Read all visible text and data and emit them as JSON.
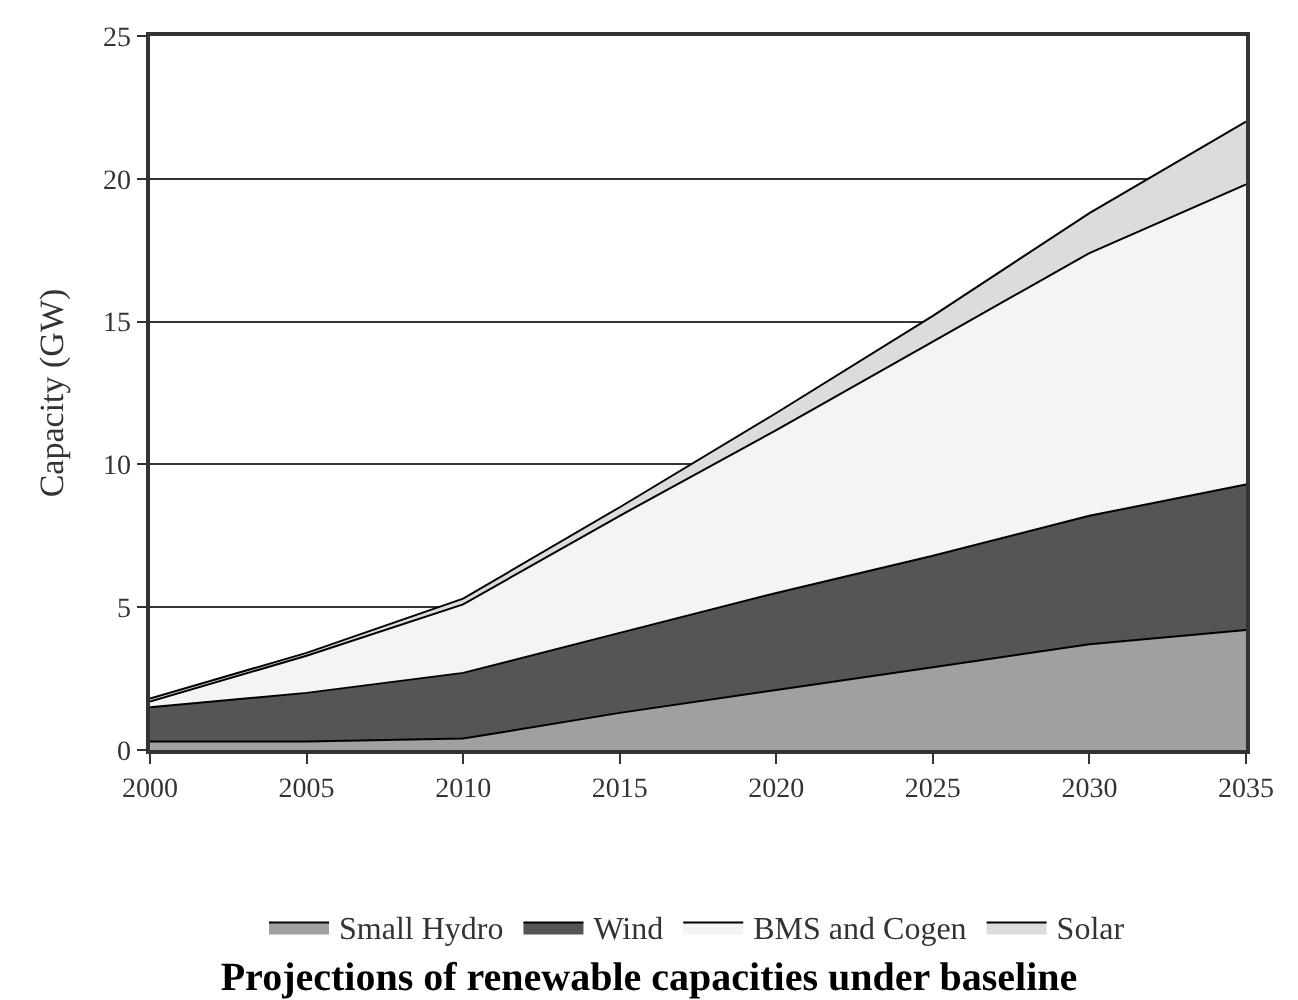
{
  "chart_data": {
    "type": "area",
    "stacked": true,
    "title": "Projections of renewable capacities under baseline",
    "ylabel": "Capacity (GW)",
    "x": [
      2000,
      2005,
      2010,
      2015,
      2020,
      2025,
      2030,
      2035
    ],
    "series": [
      {
        "name": "Small Hydro",
        "color": "#a0a0a0",
        "values": [
          0.3,
          0.3,
          0.4,
          1.3,
          2.1,
          2.9,
          3.7,
          4.2
        ]
      },
      {
        "name": "Wind",
        "color": "#555555",
        "values": [
          1.2,
          1.7,
          2.3,
          2.8,
          3.4,
          3.9,
          4.5,
          5.1
        ]
      },
      {
        "name": "BMS and Cogen",
        "color": "#f4f4f4",
        "values": [
          0.2,
          1.3,
          2.4,
          4.1,
          5.7,
          7.5,
          9.2,
          10.5
        ]
      },
      {
        "name": "Solar",
        "color": "#dcdcdc",
        "values": [
          0.1,
          0.1,
          0.2,
          0.3,
          0.6,
          0.9,
          1.4,
          2.2
        ]
      }
    ],
    "xlim": [
      2000,
      2035
    ],
    "xticks": [
      2000,
      2005,
      2010,
      2015,
      2020,
      2025,
      2030,
      2035
    ],
    "ylim": [
      0,
      25
    ],
    "yticks": [
      0,
      5,
      10,
      15,
      20,
      25
    ],
    "grid": "y",
    "legend": "bottom"
  }
}
